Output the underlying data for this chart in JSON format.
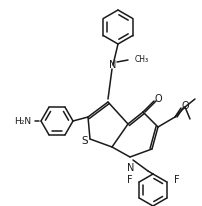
{
  "background_color": "#ffffff",
  "line_color": "#1a1a1a",
  "lw": 1.1,
  "figsize": [
    2.03,
    2.07
  ],
  "dpi": 100,
  "xlim": [
    0,
    203
  ],
  "ylim": [
    0,
    207
  ]
}
